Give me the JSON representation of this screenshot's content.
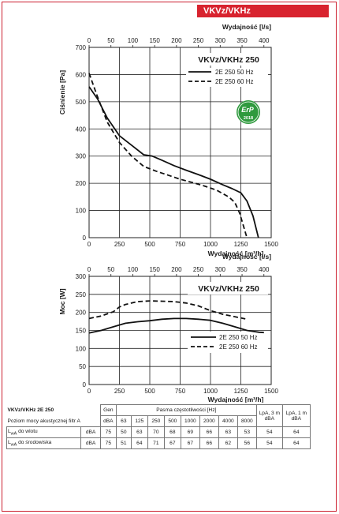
{
  "header": {
    "tag": "VKVz/VKHz"
  },
  "charts": [
    {
      "type": "line",
      "title": "VKVz/VKHz 250",
      "xlabel_bottom": "Wydajność [m³/h]",
      "xlabel_top": "Wydajność [l/s]",
      "ylabel": "Ciśnienie [Pa]",
      "xlim": [
        0,
        1500
      ],
      "ylim": [
        0,
        700
      ],
      "x_ticks": [
        "0",
        "250",
        "500",
        "750",
        "1000",
        "1250",
        "1500"
      ],
      "top_ticks": [
        "0",
        "50",
        "100",
        "150",
        "200",
        "250",
        "300",
        "350",
        "400"
      ],
      "y_ticks": [
        "0",
        "100",
        "200",
        "300",
        "400",
        "500",
        "600",
        "700"
      ],
      "grid": true,
      "legend_placement": "top-right",
      "badge": {
        "name": "erp-2018-badge-icon",
        "text": "ErP",
        "year": "2018",
        "color": "#2f9a3e"
      },
      "series": [
        {
          "name": "2E 250 50 Hz",
          "style": "solid",
          "x": [
            0,
            70,
            150,
            250,
            350,
            450,
            520,
            600,
            700,
            800,
            900,
            1000,
            1100,
            1180,
            1250,
            1300,
            1350,
            1395
          ],
          "y": [
            555,
            510,
            440,
            375,
            340,
            305,
            300,
            285,
            265,
            248,
            232,
            215,
            195,
            180,
            165,
            135,
            80,
            0
          ]
        },
        {
          "name": "2E 250 60 Hz",
          "style": "dashed",
          "x": [
            0,
            60,
            150,
            250,
            350,
            450,
            550,
            650,
            750,
            850,
            950,
            1050,
            1150,
            1200,
            1240,
            1270,
            1300
          ],
          "y": [
            605,
            530,
            425,
            350,
            300,
            262,
            245,
            230,
            215,
            203,
            190,
            175,
            150,
            130,
            90,
            45,
            0
          ]
        }
      ]
    },
    {
      "type": "line",
      "title": "VKVz/VKHz 250",
      "xlabel_bottom": "Wydajność [m³/h]",
      "xlabel_top": "Wydajność [l/s]",
      "ylabel": "Moc [W]",
      "xlim": [
        0,
        1500
      ],
      "ylim": [
        0,
        300
      ],
      "x_ticks": [
        "0",
        "250",
        "500",
        "750",
        "1000",
        "1250",
        "1500"
      ],
      "top_ticks": [
        "0",
        "50",
        "100",
        "150",
        "200",
        "250",
        "300",
        "350",
        "400"
      ],
      "y_ticks": [
        "0",
        "50",
        "100",
        "150",
        "200",
        "250",
        "300"
      ],
      "grid": true,
      "legend_placement": "bottom-right",
      "series": [
        {
          "name": "2E 250 50 Hz",
          "style": "solid",
          "x": [
            0,
            100,
            200,
            300,
            400,
            500,
            600,
            700,
            800,
            900,
            1000,
            1100,
            1200,
            1300,
            1400,
            1440
          ],
          "y": [
            143,
            150,
            160,
            170,
            174,
            177,
            181,
            183,
            183,
            181,
            178,
            170,
            160,
            150,
            145,
            144
          ]
        },
        {
          "name": "2E 250 60 Hz",
          "style": "dashed",
          "x": [
            0,
            100,
            200,
            250,
            300,
            400,
            500,
            600,
            700,
            800,
            900,
            1000,
            1100,
            1200,
            1300
          ],
          "y": [
            183,
            190,
            202,
            215,
            222,
            230,
            232,
            231,
            230,
            226,
            218,
            205,
            195,
            188,
            181
          ]
        }
      ]
    }
  ],
  "table": {
    "title": "VKVz/VKHz 2E 250",
    "subtitle": "Poziom mocy akustycznej filtr A",
    "gen_header": "Gen",
    "bands_header": "Pasma częstotliwości [Hz]",
    "lpa3_header": "LpA, 3 m dBA",
    "lpa1_header": "LpA, 1 m dBA",
    "dba_label": "dBA",
    "bands": [
      "63",
      "125",
      "250",
      "500",
      "1000",
      "2000",
      "4000",
      "8000"
    ],
    "rows": [
      {
        "label_main": "L",
        "label_sub": "wA",
        "label_rest": " do wlotu",
        "unit": "dBA",
        "gen": "75",
        "values": [
          "50",
          "63",
          "70",
          "68",
          "69",
          "66",
          "63",
          "53"
        ],
        "lpa3": "54",
        "lpa1": "64"
      },
      {
        "label_main": "L",
        "label_sub": "wA",
        "label_rest": " do środowiska",
        "unit": "dBA",
        "gen": "75",
        "values": [
          "51",
          "64",
          "71",
          "67",
          "67",
          "66",
          "62",
          "56"
        ],
        "lpa3": "54",
        "lpa1": "64"
      }
    ]
  }
}
